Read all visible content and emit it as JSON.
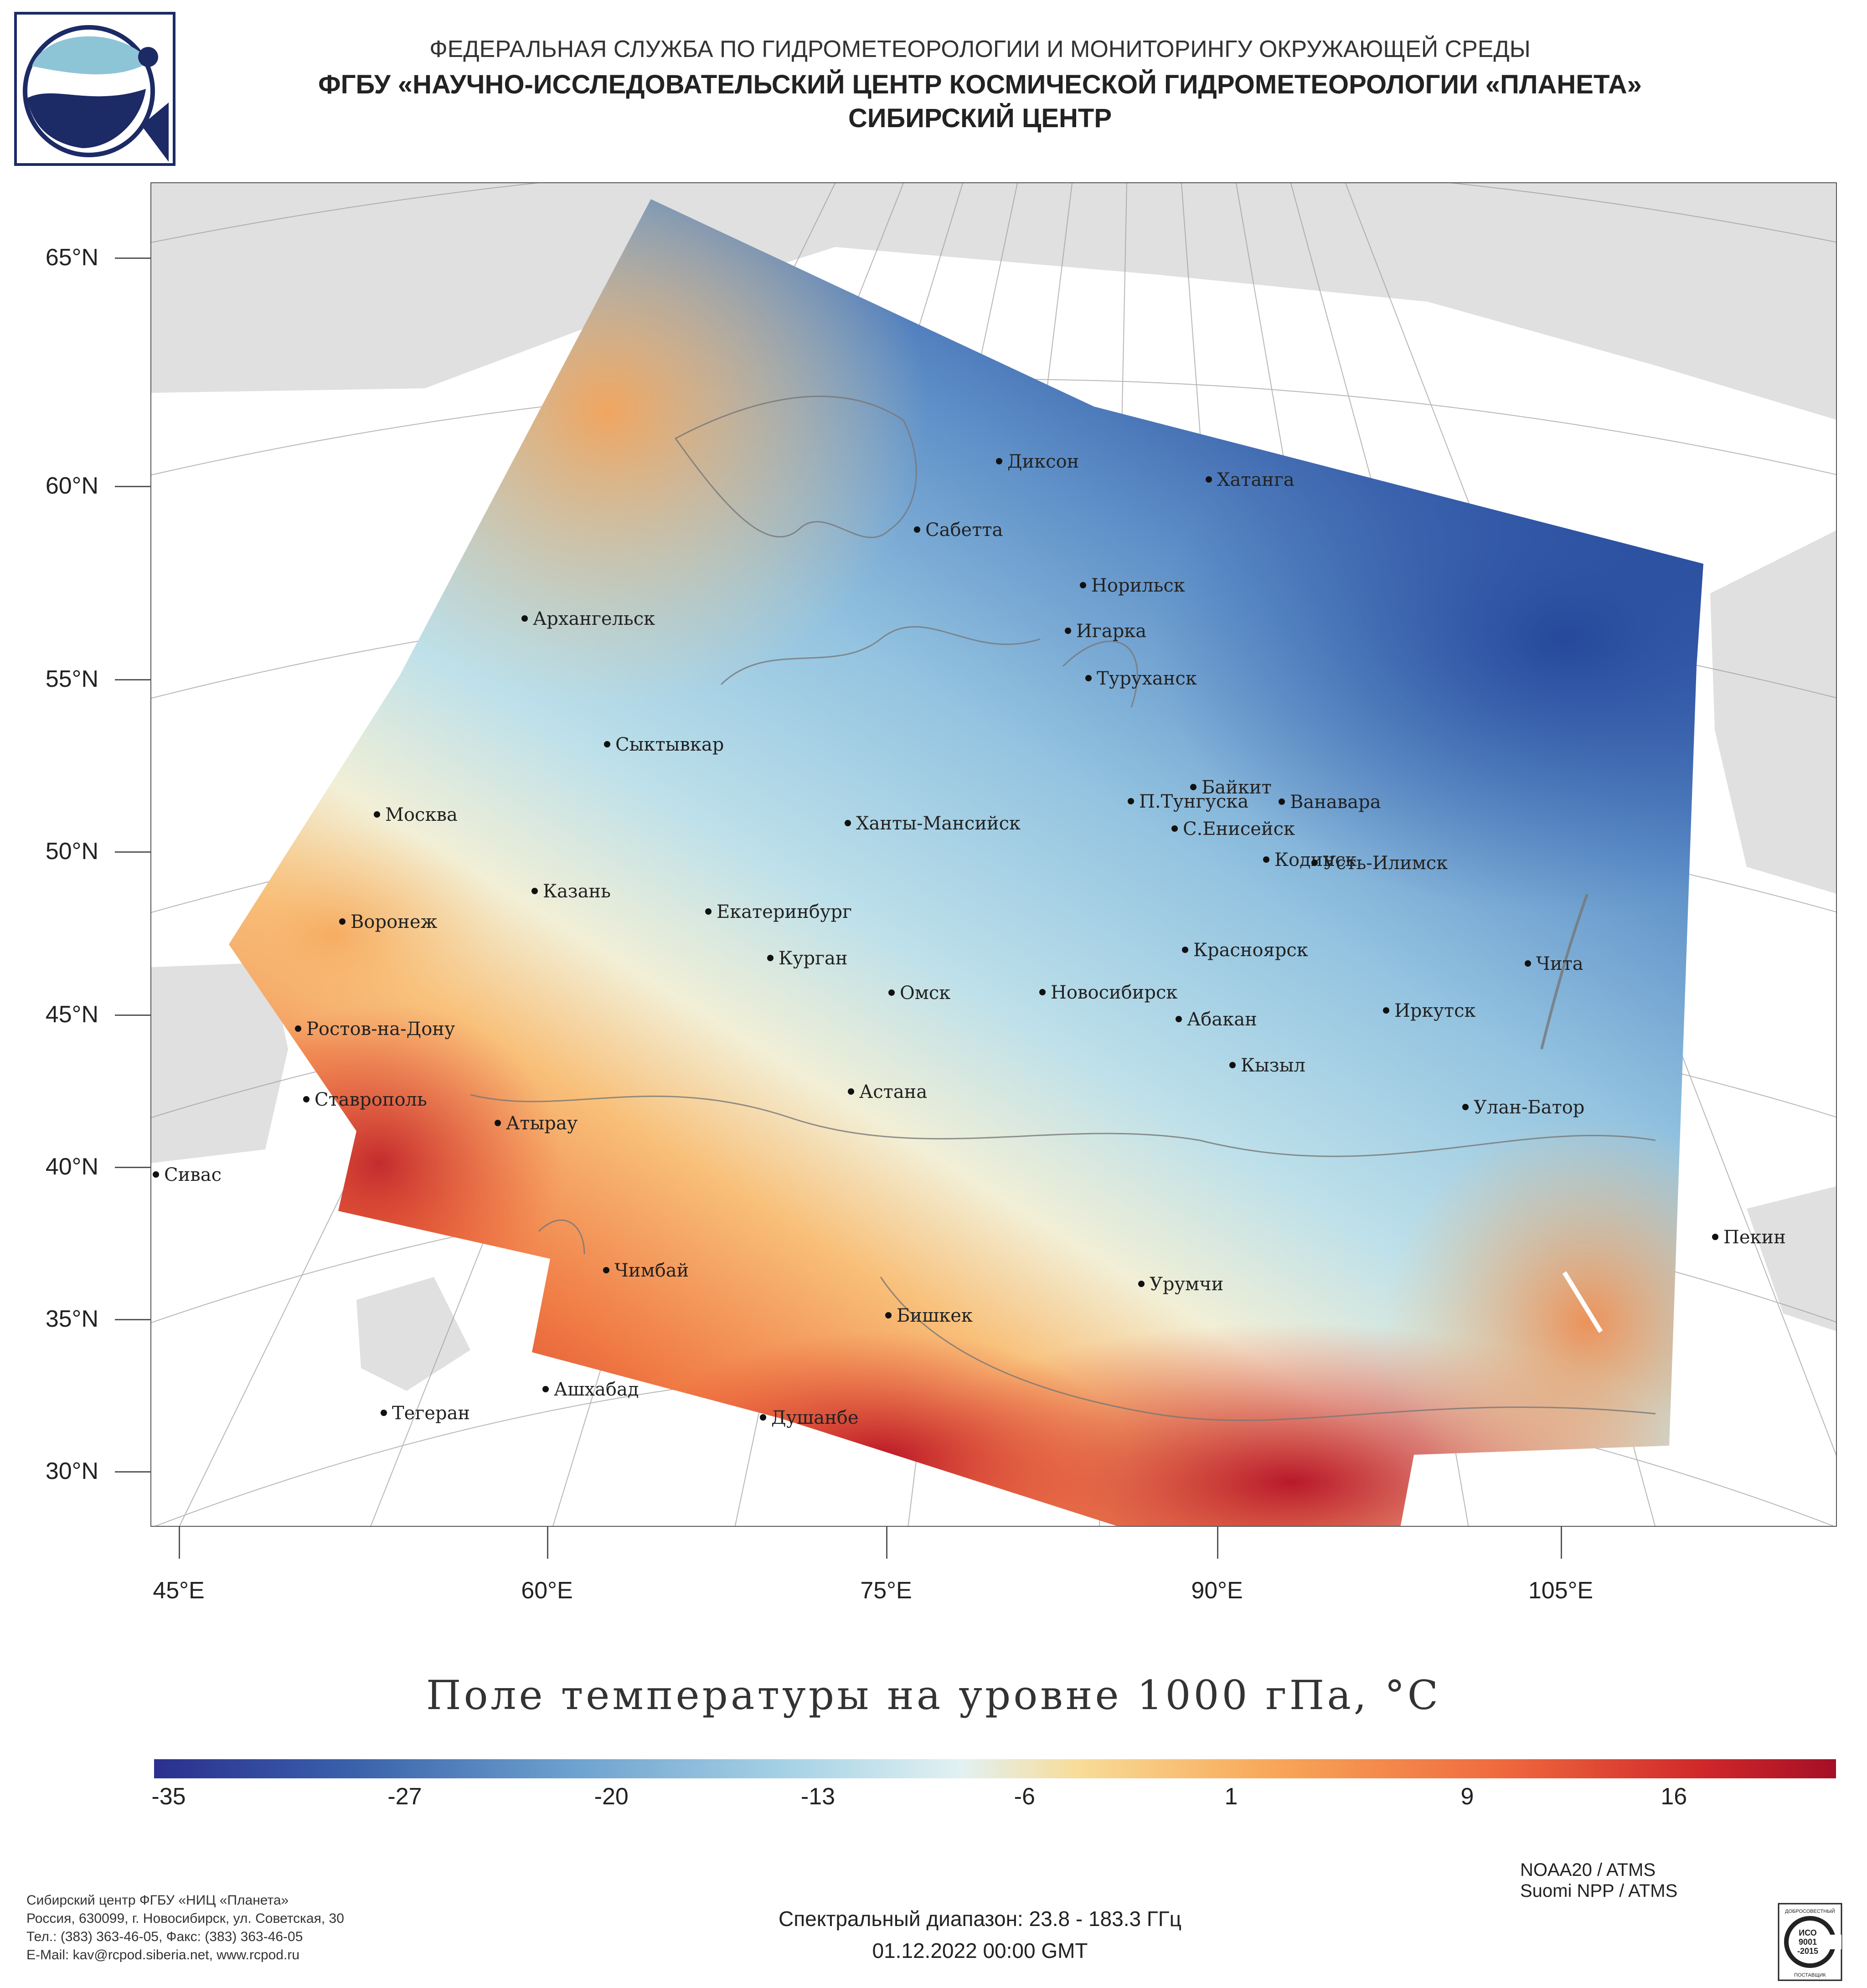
{
  "header": {
    "line1": "ФЕДЕРАЛЬНАЯ СЛУЖБА ПО ГИДРОМЕТЕОРОЛОГИИ И МОНИТОРИНГУ ОКРУЖАЮЩЕЙ СРЕДЫ",
    "line2": "ФГБУ «НАУЧНО-ИССЛЕДОВАТЕЛЬСКИЙ ЦЕНТР КОСМИЧЕСКОЙ ГИДРОМЕТЕОРОЛОГИИ «ПЛАНЕТА»",
    "line3": "СИБИРСКИЙ ЦЕНТР"
  },
  "map": {
    "latitude_labels": [
      "65°N",
      "60°N",
      "55°N",
      "50°N",
      "45°N",
      "40°N",
      "35°N",
      "30°N"
    ],
    "longitude_labels": [
      "45°E",
      "60°E",
      "75°E",
      "90°E",
      "105°E"
    ],
    "cities": [
      "Диксон",
      "Хатанга",
      "Сабетта",
      "Норильск",
      "Архангельск",
      "Игарка",
      "Туруханск",
      "Сыктывкар",
      "Байкит",
      "П.Тунгуска",
      "Ванавара",
      "Москва",
      "Ханты-Мансийск",
      "С.Енисейск",
      "Кодинск",
      "Усть-Илимск",
      "Казань",
      "Воронеж",
      "Екатеринбург",
      "Красноярск",
      "Курган",
      "Чита",
      "Омск",
      "Новосибирск",
      "Ростов-на-Дону",
      "Иркутск",
      "Абакан",
      "Кызыл",
      "Астана",
      "Ставрополь",
      "Улан-Батор",
      "Атырау",
      "Сивас",
      "Пекин",
      "Чимбай",
      "Урумчи",
      "Бишкек",
      "Ашхабад",
      "Тегеран",
      "Душанбе"
    ],
    "colors": {
      "cold": "#2c4fa0",
      "cool": "#a8d3e6",
      "neutral": "#f2efd6",
      "warm": "#f6a55a",
      "hot": "#c91d26",
      "land": "#e0e0e0"
    }
  },
  "title": "Поле температуры на уровне 1000 гПа, °C",
  "colorbar": {
    "labels": [
      "-35",
      "-27",
      "-20",
      "-13",
      "-6",
      "1",
      "9",
      "16"
    ],
    "min": -35,
    "max": 21
  },
  "footer_left": [
    "Сибирский центр ФГБУ «НИЦ «Планета»",
    "Россия, 630099, г. Новосибирск, ул. Советская, 30",
    "Тел.: (383) 363-46-05, Факс: (383) 363-46-05",
    "E-Mail: kav@rcpod.siberia.net, www.rcpod.ru"
  ],
  "footer_center": {
    "spectral": "Спектральный диапазон: 23.8 - 183.3 ГГц",
    "datetime": "01.12.2022 00:00 GMT"
  },
  "footer_right": [
    "NOAA20 / ATMS",
    "Suomi NPP / ATMS"
  ],
  "iso_badge": [
    "ДОБРОСОВЕСТНЫЙ",
    "ИСО",
    "9001",
    "-2015",
    "ПОСТАВЩИК"
  ]
}
